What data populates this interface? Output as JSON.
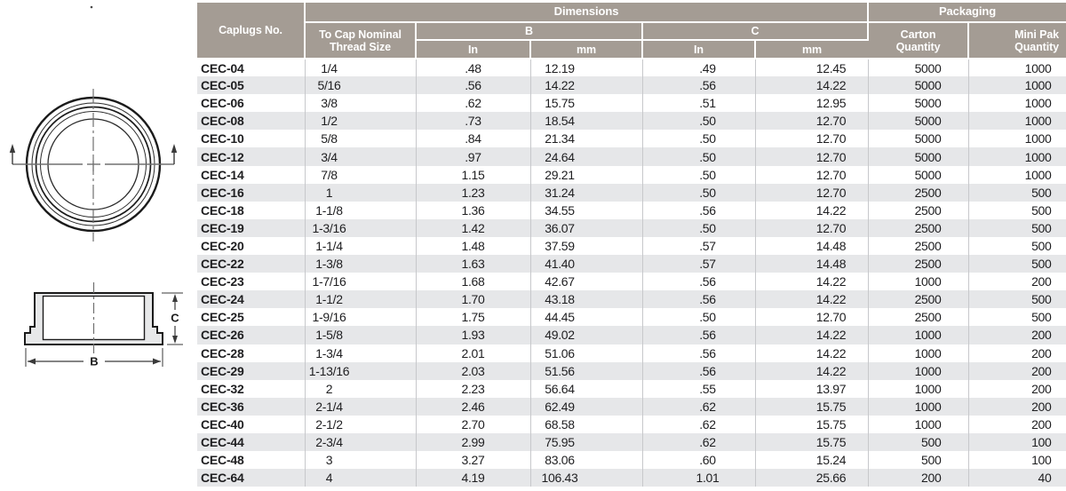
{
  "colors": {
    "header_bg": "#a49c94",
    "stripe": "#e6e7e9",
    "grid_line": "#c7c8cb",
    "header_text": "#ffffff",
    "body_text": "#1e1e20",
    "drawing_fill": "#e7e8e9",
    "drawing_line": "#1b1b1b"
  },
  "diagram": {
    "top_view": "cap-top-view-drawing",
    "side_view": "cap-side-section-drawing",
    "b_label": "B",
    "c_label": "C"
  },
  "table": {
    "header": {
      "caplugs_no": "Caplugs No.",
      "dimensions": "Dimensions",
      "packaging": "Packaging",
      "thread_size": "To Cap Nominal Thread Size",
      "b": "B",
      "c": "C",
      "units": {
        "in": "In",
        "mm": "mm"
      },
      "carton_quantity": "Carton Quantity",
      "mini_pak_quantity": "Mini Pak Quantity"
    },
    "columns": [
      "Caplugs No.",
      "To Cap Nominal Thread Size",
      "B In",
      "B mm",
      "C In",
      "C mm",
      "Carton Quantity",
      "Mini Pak Quantity"
    ],
    "rows": [
      [
        "CEC-04",
        "1/4",
        ".48",
        "12.19",
        ".49",
        "12.45",
        "5000",
        "1000"
      ],
      [
        "CEC-05",
        "5/16",
        ".56",
        "14.22",
        ".56",
        "14.22",
        "5000",
        "1000"
      ],
      [
        "CEC-06",
        "3/8",
        ".62",
        "15.75",
        ".51",
        "12.95",
        "5000",
        "1000"
      ],
      [
        "CEC-08",
        "1/2",
        ".73",
        "18.54",
        ".50",
        "12.70",
        "5000",
        "1000"
      ],
      [
        "CEC-10",
        "5/8",
        ".84",
        "21.34",
        ".50",
        "12.70",
        "5000",
        "1000"
      ],
      [
        "CEC-12",
        "3/4",
        ".97",
        "24.64",
        ".50",
        "12.70",
        "5000",
        "1000"
      ],
      [
        "CEC-14",
        "7/8",
        "1.15",
        "29.21",
        ".50",
        "12.70",
        "5000",
        "1000"
      ],
      [
        "CEC-16",
        "1",
        "1.23",
        "31.24",
        ".50",
        "12.70",
        "2500",
        "500"
      ],
      [
        "CEC-18",
        "1-1/8",
        "1.36",
        "34.55",
        ".56",
        "14.22",
        "2500",
        "500"
      ],
      [
        "CEC-19",
        "1-3/16",
        "1.42",
        "36.07",
        ".50",
        "12.70",
        "2500",
        "500"
      ],
      [
        "CEC-20",
        "1-1/4",
        "1.48",
        "37.59",
        ".57",
        "14.48",
        "2500",
        "500"
      ],
      [
        "CEC-22",
        "1-3/8",
        "1.63",
        "41.40",
        ".57",
        "14.48",
        "2500",
        "500"
      ],
      [
        "CEC-23",
        "1-7/16",
        "1.68",
        "42.67",
        ".56",
        "14.22",
        "1000",
        "200"
      ],
      [
        "CEC-24",
        "1-1/2",
        "1.70",
        "43.18",
        ".56",
        "14.22",
        "2500",
        "500"
      ],
      [
        "CEC-25",
        "1-9/16",
        "1.75",
        "44.45",
        ".50",
        "12.70",
        "2500",
        "500"
      ],
      [
        "CEC-26",
        "1-5/8",
        "1.93",
        "49.02",
        ".56",
        "14.22",
        "1000",
        "200"
      ],
      [
        "CEC-28",
        "1-3/4",
        "2.01",
        "51.06",
        ".56",
        "14.22",
        "1000",
        "200"
      ],
      [
        "CEC-29",
        "1-13/16",
        "2.03",
        "51.56",
        ".56",
        "14.22",
        "1000",
        "200"
      ],
      [
        "CEC-32",
        "2",
        "2.23",
        "56.64",
        ".55",
        "13.97",
        "1000",
        "200"
      ],
      [
        "CEC-36",
        "2-1/4",
        "2.46",
        "62.49",
        ".62",
        "15.75",
        "1000",
        "200"
      ],
      [
        "CEC-40",
        "2-1/2",
        "2.70",
        "68.58",
        ".62",
        "15.75",
        "1000",
        "200"
      ],
      [
        "CEC-44",
        "2-3/4",
        "2.99",
        "75.95",
        ".62",
        "15.75",
        "500",
        "100"
      ],
      [
        "CEC-48",
        "3",
        "3.27",
        "83.06",
        ".60",
        "15.24",
        "500",
        "100"
      ],
      [
        "CEC-64",
        "4",
        "4.19",
        "106.43",
        "1.01",
        "25.66",
        "200",
        "40"
      ]
    ]
  }
}
